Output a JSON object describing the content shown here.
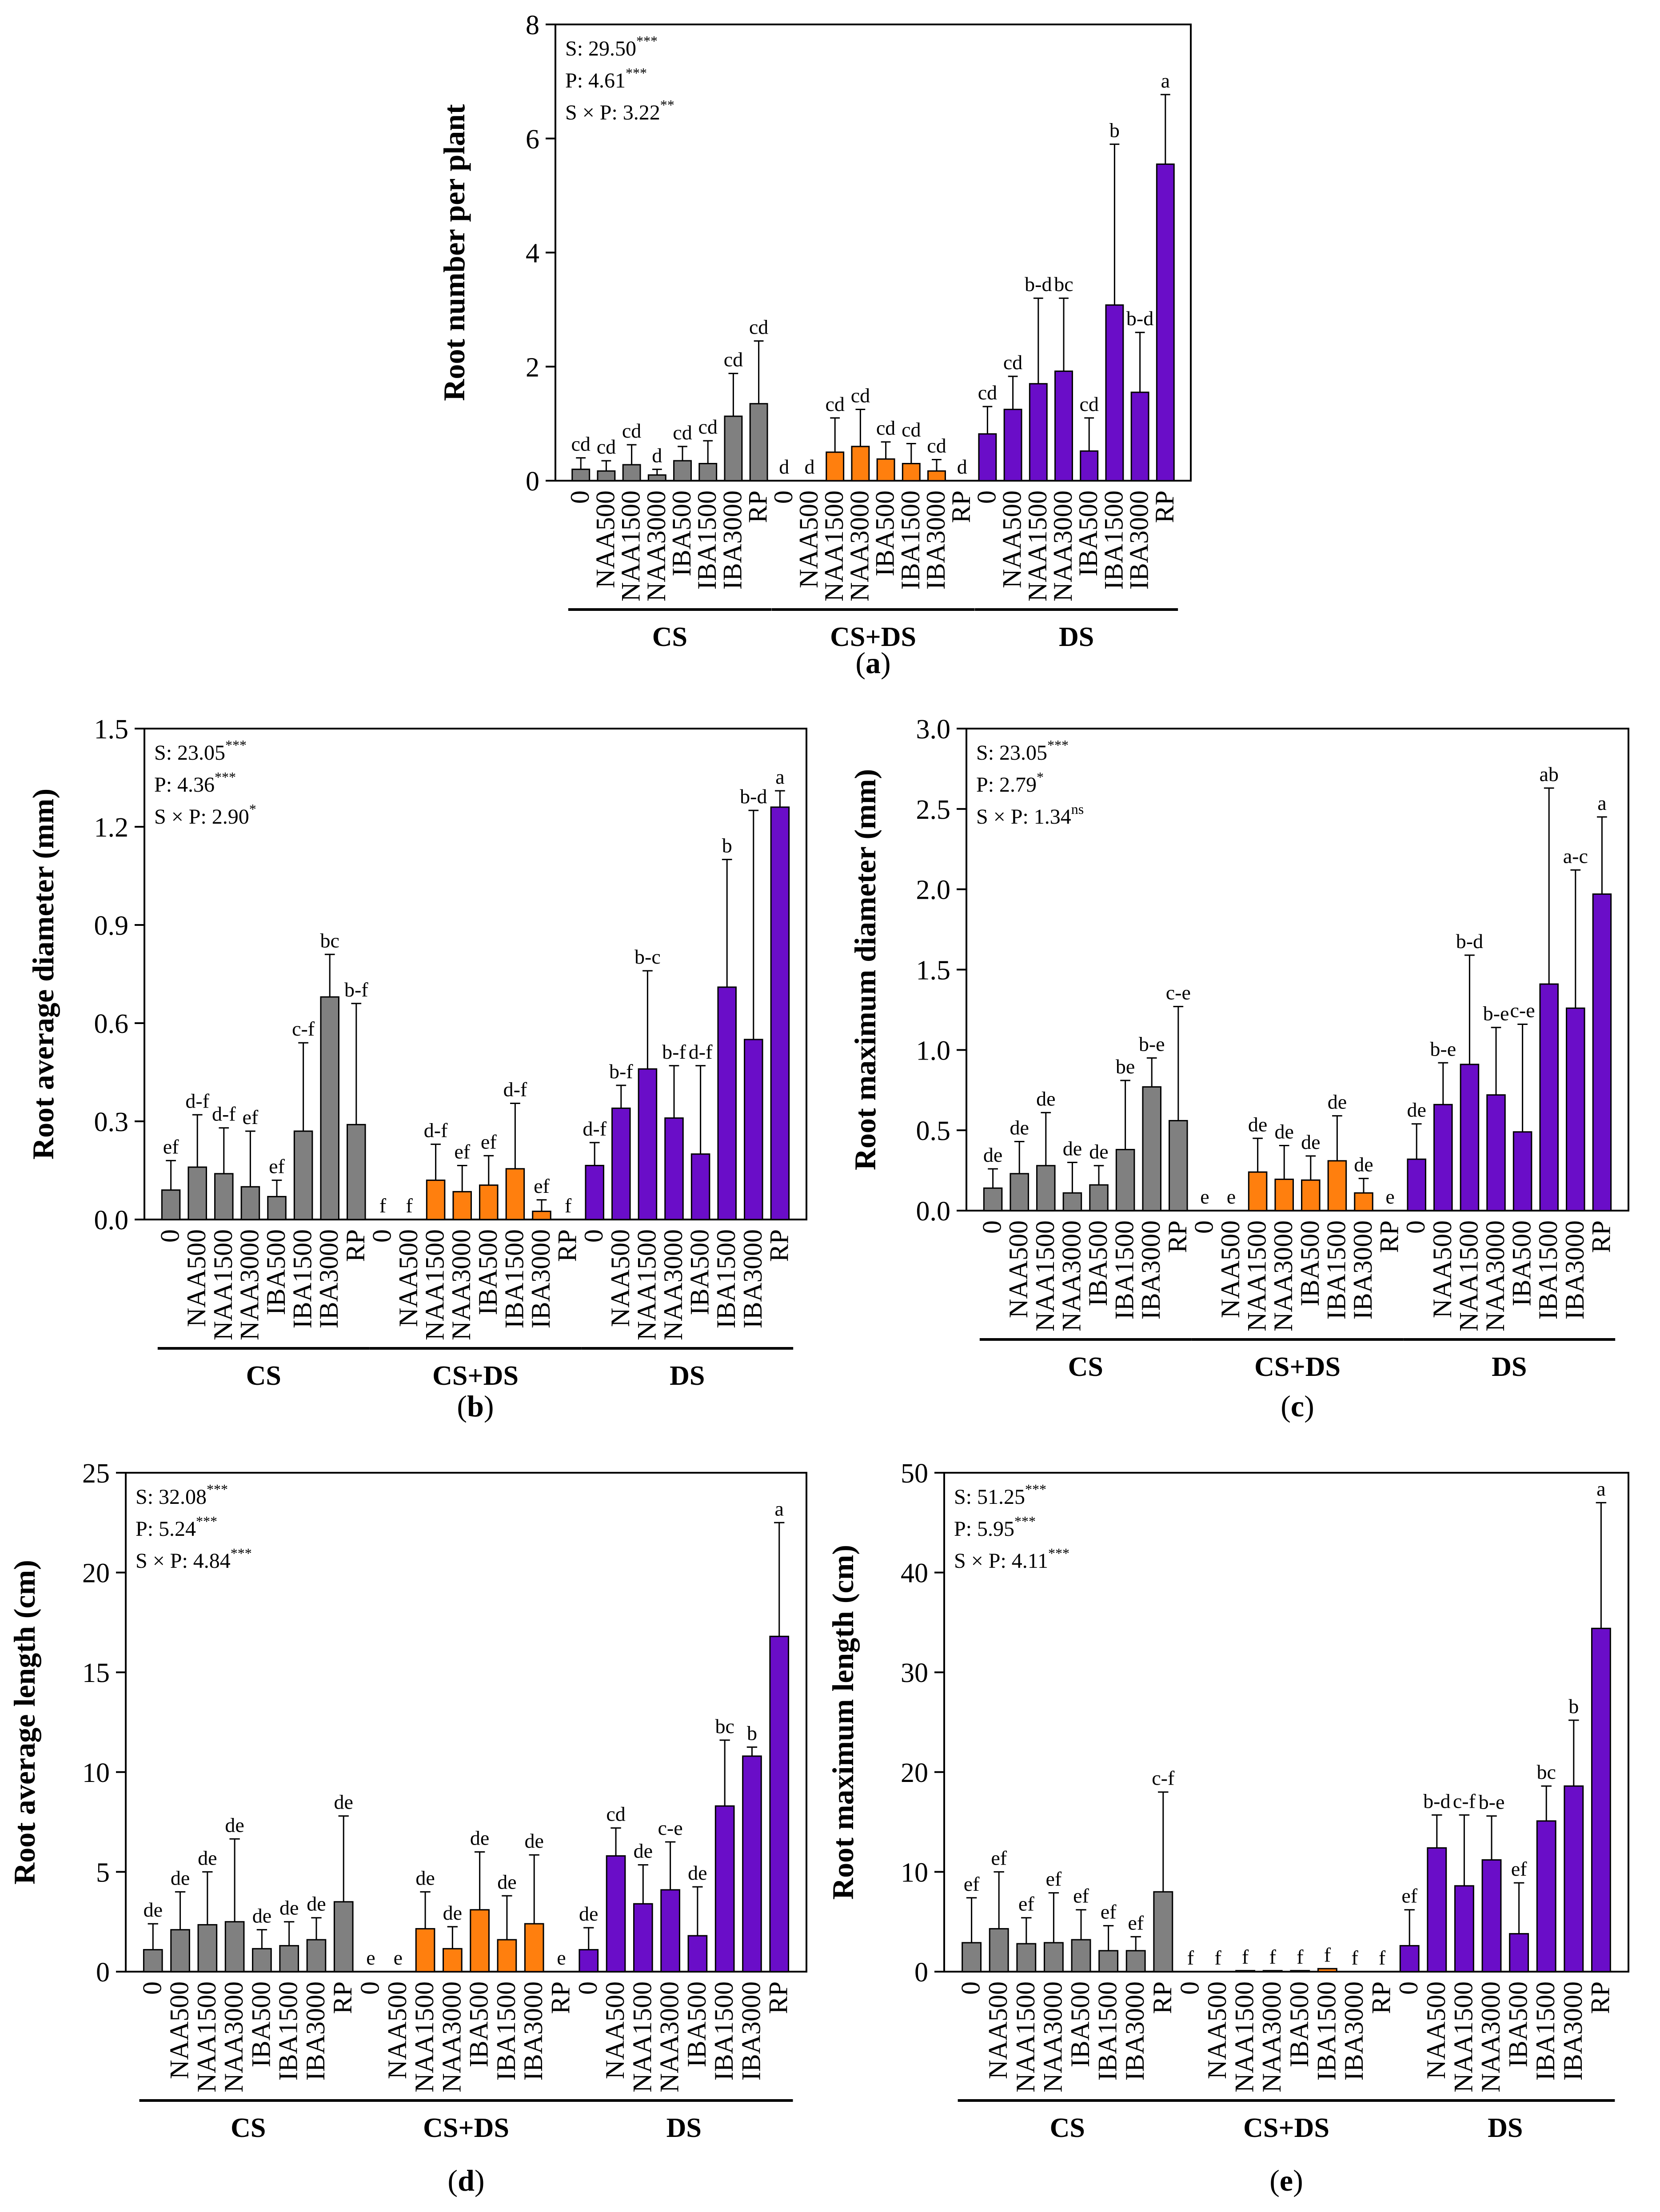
{
  "figure": {
    "treatments": [
      "0",
      "NAA500",
      "NAA1500",
      "NAA3000",
      "IBA500",
      "IBA1500",
      "IBA3000",
      "RP"
    ],
    "groups": [
      "CS",
      "CS+DS",
      "DS"
    ],
    "colors": {
      "CS": "#808080",
      "CS+DS": "#FF7F0E",
      "DS": "#6A0DC8",
      "axis": "#000000"
    }
  },
  "chart_data": [
    {
      "id": "a",
      "type": "bar",
      "panel_label": "a",
      "ylabel": "Root number per plant",
      "ylim": [
        0,
        8
      ],
      "yticks": [
        0,
        2,
        4,
        6,
        8
      ],
      "tick_labels": [
        "0",
        "2",
        "4",
        "6",
        "8"
      ],
      "stats": [
        {
          "text": "S: 29.50",
          "sup": "***"
        },
        {
          "text": "P: 4.61",
          "sup": "***"
        },
        {
          "text": "S × P: 3.22",
          "sup": "**"
        }
      ],
      "series": [
        {
          "name": "CS",
          "values": [
            0.2,
            0.17,
            0.28,
            0.1,
            0.35,
            0.3,
            1.13,
            1.35
          ],
          "errors": [
            0.2,
            0.18,
            0.35,
            0.1,
            0.25,
            0.4,
            0.75,
            1.1
          ],
          "letters": [
            "cd",
            "cd",
            "cd",
            "d",
            "cd",
            "cd",
            "cd",
            "cd"
          ]
        },
        {
          "name": "CS+DS",
          "values": [
            0,
            0,
            0.5,
            0.6,
            0.38,
            0.3,
            0.17,
            0
          ],
          "errors": [
            0,
            0,
            0.6,
            0.65,
            0.3,
            0.35,
            0.2,
            0
          ],
          "letters": [
            "d",
            "d",
            "cd",
            "cd",
            "cd",
            "cd",
            "cd",
            "d"
          ]
        },
        {
          "name": "DS",
          "values": [
            0.82,
            1.25,
            1.7,
            1.92,
            0.52,
            3.08,
            1.55,
            5.55
          ],
          "errors": [
            0.48,
            0.58,
            1.5,
            1.28,
            0.58,
            2.82,
            1.05,
            1.22
          ],
          "letters": [
            "cd",
            "cd",
            "b-d",
            "bc",
            "cd",
            "b",
            "b-d",
            "a"
          ]
        }
      ]
    },
    {
      "id": "b",
      "type": "bar",
      "panel_label": "b",
      "ylabel": "Root average diameter (mm)",
      "ylim": [
        0,
        1.5
      ],
      "yticks": [
        0,
        0.3,
        0.6,
        0.9,
        1.2,
        1.5
      ],
      "tick_labels": [
        "0.0",
        "0.3",
        "0.6",
        "0.9",
        "1.2",
        "1.5"
      ],
      "stats": [
        {
          "text": "S: 23.05",
          "sup": "***"
        },
        {
          "text": "P: 4.36",
          "sup": "***"
        },
        {
          "text": "S × P: 2.90",
          "sup": "*"
        }
      ],
      "series": [
        {
          "name": "CS",
          "values": [
            0.09,
            0.16,
            0.14,
            0.1,
            0.07,
            0.27,
            0.68,
            0.29
          ],
          "errors": [
            0.09,
            0.16,
            0.14,
            0.17,
            0.05,
            0.27,
            0.13,
            0.37
          ],
          "letters": [
            "ef",
            "d-f",
            "d-f",
            "ef",
            "ef",
            "c-f",
            "bc",
            "b-f"
          ]
        },
        {
          "name": "CS+DS",
          "values": [
            0,
            0,
            0.12,
            0.085,
            0.105,
            0.155,
            0.025,
            0
          ],
          "errors": [
            0,
            0,
            0.11,
            0.08,
            0.09,
            0.2,
            0.035,
            0
          ],
          "letters": [
            "f",
            "f",
            "d-f",
            "ef",
            "ef",
            "d-f",
            "ef",
            "f"
          ]
        },
        {
          "name": "DS",
          "values": [
            0.165,
            0.34,
            0.46,
            0.31,
            0.2,
            0.71,
            0.55,
            1.26
          ],
          "errors": [
            0.07,
            0.07,
            0.3,
            0.16,
            0.27,
            0.39,
            0.7,
            0.05
          ],
          "letters": [
            "d-f",
            "b-f",
            "b-c",
            "b-f",
            "d-f",
            "b",
            "b-d",
            "a"
          ]
        }
      ]
    },
    {
      "id": "c",
      "type": "bar",
      "panel_label": "c",
      "ylabel": "Root maximum diameter (mm)",
      "ylim": [
        0,
        3.0
      ],
      "yticks": [
        0,
        0.5,
        1.0,
        1.5,
        2.0,
        2.5,
        3.0
      ],
      "tick_labels": [
        "0.0",
        "0.5",
        "1.0",
        "1.5",
        "2.0",
        "2.5",
        "3.0"
      ],
      "stats": [
        {
          "text": "S: 23.05",
          "sup": "***"
        },
        {
          "text": "P: 2.79",
          "sup": "*"
        },
        {
          "text": "S × P: 1.34",
          "sup": "ns"
        }
      ],
      "series": [
        {
          "name": "CS",
          "values": [
            0.14,
            0.23,
            0.28,
            0.11,
            0.16,
            0.38,
            0.77,
            0.56
          ],
          "errors": [
            0.12,
            0.2,
            0.33,
            0.19,
            0.12,
            0.43,
            0.18,
            0.71
          ],
          "letters": [
            "de",
            "de",
            "de",
            "de",
            "de",
            "be",
            "b-e",
            "c-e"
          ]
        },
        {
          "name": "CS+DS",
          "values": [
            0,
            0,
            0.24,
            0.195,
            0.19,
            0.31,
            0.11,
            0
          ],
          "errors": [
            0,
            0,
            0.21,
            0.21,
            0.15,
            0.28,
            0.09,
            0
          ],
          "letters": [
            "e",
            "e",
            "de",
            "de",
            "de",
            "de",
            "de",
            "e"
          ]
        },
        {
          "name": "DS",
          "values": [
            0.32,
            0.66,
            0.91,
            0.72,
            0.49,
            1.41,
            1.26,
            1.97
          ],
          "errors": [
            0.22,
            0.26,
            0.68,
            0.42,
            0.67,
            1.22,
            0.86,
            0.48
          ],
          "letters": [
            "de",
            "b-e",
            "b-d",
            "b-e",
            "c-e",
            "ab",
            "a-c",
            "a"
          ]
        }
      ]
    },
    {
      "id": "d",
      "type": "bar",
      "panel_label": "d",
      "ylabel": "Root average length (cm)",
      "ylim": [
        0,
        25
      ],
      "yticks": [
        0,
        5,
        10,
        15,
        20,
        25
      ],
      "tick_labels": [
        "0",
        "5",
        "10",
        "15",
        "20",
        "25"
      ],
      "stats": [
        {
          "text": "S: 32.08",
          "sup": "***"
        },
        {
          "text": "P: 5.24",
          "sup": "***"
        },
        {
          "text": "S × P: 4.84",
          "sup": "***"
        }
      ],
      "series": [
        {
          "name": "CS",
          "values": [
            1.1,
            2.1,
            2.35,
            2.5,
            1.15,
            1.3,
            1.6,
            3.5
          ],
          "errors": [
            1.3,
            1.9,
            2.65,
            4.15,
            0.95,
            1.2,
            1.1,
            4.3
          ],
          "letters": [
            "de",
            "de",
            "de",
            "de",
            "de",
            "de",
            "de",
            "de"
          ]
        },
        {
          "name": "CS+DS",
          "values": [
            0,
            0,
            2.15,
            1.15,
            3.1,
            1.6,
            2.4,
            0
          ],
          "errors": [
            0,
            0,
            1.85,
            1.1,
            2.9,
            2.2,
            3.45,
            0
          ],
          "letters": [
            "e",
            "e",
            "de",
            "de",
            "de",
            "de",
            "de",
            "e"
          ]
        },
        {
          "name": "DS",
          "values": [
            1.1,
            5.8,
            3.4,
            4.1,
            1.8,
            8.3,
            10.8,
            16.8
          ],
          "errors": [
            1.1,
            1.4,
            1.95,
            2.4,
            2.45,
            3.3,
            0.45,
            5.7
          ],
          "letters": [
            "de",
            "cd",
            "de",
            "c-e",
            "de",
            "bc",
            "b",
            "a"
          ]
        }
      ]
    },
    {
      "id": "e",
      "type": "bar",
      "panel_label": "e",
      "ylabel": "Root maximum length (cm)",
      "ylim": [
        0,
        50
      ],
      "yticks": [
        0,
        10,
        20,
        30,
        40,
        50
      ],
      "tick_labels": [
        "0",
        "10",
        "20",
        "30",
        "40",
        "50"
      ],
      "stats": [
        {
          "text": "S: 51.25",
          "sup": "***"
        },
        {
          "text": "P: 5.95",
          "sup": "***"
        },
        {
          "text": "S × P: 4.11",
          "sup": "***"
        }
      ],
      "series": [
        {
          "name": "CS",
          "values": [
            2.9,
            4.3,
            2.8,
            2.9,
            3.2,
            2.1,
            2.1,
            8.0
          ],
          "errors": [
            4.5,
            5.7,
            2.6,
            5.0,
            3.0,
            2.5,
            1.4,
            10.0
          ],
          "letters": [
            "ef",
            "ef",
            "ef",
            "ef",
            "ef",
            "ef",
            "ef",
            "c-f"
          ]
        },
        {
          "name": "CS+DS",
          "values": [
            0,
            0,
            0.1,
            0.1,
            0.1,
            0.3,
            0,
            0
          ],
          "errors": [
            0,
            0,
            0,
            0,
            0,
            0,
            0,
            0
          ],
          "letters": [
            "f",
            "f",
            "f",
            "f",
            "f",
            "f",
            "f",
            "f"
          ]
        },
        {
          "name": "DS",
          "values": [
            2.6,
            12.4,
            8.6,
            11.2,
            3.8,
            15.1,
            18.6,
            34.4
          ],
          "errors": [
            3.6,
            3.3,
            7.1,
            4.4,
            5.1,
            3.5,
            6.6,
            12.6
          ],
          "letters": [
            "ef",
            "b-d",
            "c-f",
            "b-e",
            "ef",
            "bc",
            "b",
            "a"
          ]
        }
      ]
    }
  ]
}
